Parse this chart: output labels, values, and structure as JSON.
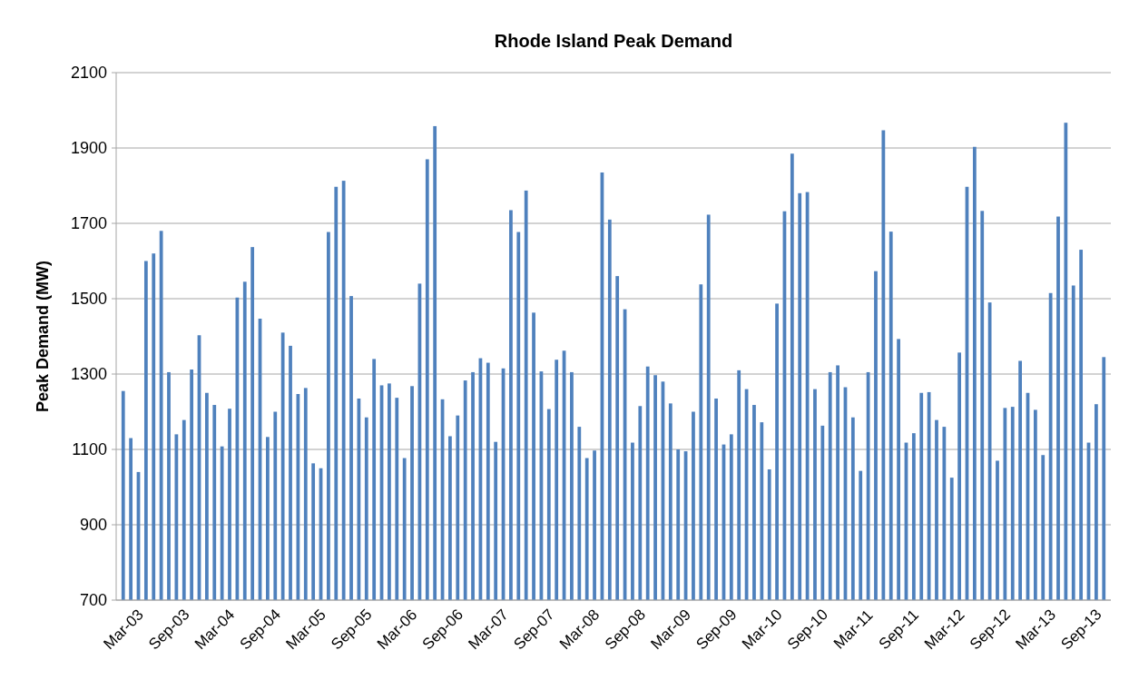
{
  "chart_data": {
    "type": "bar",
    "title": "Rhode Island Peak Demand",
    "ylabel": "Peak Demand (MW)",
    "categories": [
      "Mar-03",
      null,
      null,
      null,
      null,
      null,
      "Sep-03",
      null,
      null,
      null,
      null,
      null,
      "Mar-04",
      null,
      null,
      null,
      null,
      null,
      "Sep-04",
      null,
      null,
      null,
      null,
      null,
      "Mar-05",
      null,
      null,
      null,
      null,
      null,
      "Sep-05",
      null,
      null,
      null,
      null,
      null,
      "Mar-06",
      null,
      null,
      null,
      null,
      null,
      "Sep-06",
      null,
      null,
      null,
      null,
      null,
      "Mar-07",
      null,
      null,
      null,
      null,
      null,
      "Sep-07",
      null,
      null,
      null,
      null,
      null,
      "Mar-08",
      null,
      null,
      null,
      null,
      null,
      "Sep-08",
      null,
      null,
      null,
      null,
      null,
      "Mar-09",
      null,
      null,
      null,
      null,
      null,
      "Sep-09",
      null,
      null,
      null,
      null,
      null,
      "Mar-10",
      null,
      null,
      null,
      null,
      null,
      "Sep-10",
      null,
      null,
      null,
      null,
      null,
      "Mar-11",
      null,
      null,
      null,
      null,
      null,
      "Sep-11",
      null,
      null,
      null,
      null,
      null,
      "Mar-12",
      null,
      null,
      null,
      null,
      null,
      "Sep-12",
      null,
      null,
      null,
      null,
      null,
      "Mar-13",
      null,
      null,
      null,
      null,
      null,
      "Sep-13",
      null,
      null,
      null
    ],
    "values": [
      1255,
      1130,
      1040,
      1600,
      1620,
      1680,
      1305,
      1140,
      1178,
      1312,
      1403,
      1250,
      1218,
      1108,
      1208,
      1503,
      1545,
      1637,
      1447,
      1133,
      1200,
      1410,
      1375,
      1247,
      1263,
      1063,
      1050,
      1677,
      1797,
      1813,
      1507,
      1235,
      1185,
      1340,
      1270,
      1275,
      1237,
      1077,
      1268,
      1540,
      1870,
      1958,
      1233,
      1135,
      1190,
      1283,
      1305,
      1342,
      1330,
      1120,
      1315,
      1735,
      1677,
      1787,
      1463,
      1307,
      1207,
      1338,
      1362,
      1305,
      1160,
      1077,
      1097,
      1835,
      1710,
      1560,
      1472,
      1118,
      1215,
      1320,
      1297,
      1280,
      1222,
      1100,
      1095,
      1200,
      1538,
      1723,
      1235,
      1113,
      1140,
      1310,
      1260,
      1218,
      1172,
      1047,
      1487,
      1732,
      1885,
      1780,
      1783,
      1260,
      1163,
      1305,
      1323,
      1265,
      1185,
      1043,
      1305,
      1573,
      1947,
      1678,
      1393,
      1118,
      1143,
      1250,
      1252,
      1178,
      1160,
      1025,
      1357,
      1797,
      1903,
      1733,
      1490,
      1070,
      1210,
      1213,
      1335,
      1250,
      1205,
      1085,
      1515,
      1718,
      1967,
      1535,
      1630,
      1118,
      1220,
      1345
    ],
    "color": "#4f81bd",
    "ylim": [
      700,
      2100
    ],
    "yticks": [
      700,
      900,
      1100,
      1300,
      1500,
      1700,
      1900,
      2100
    ],
    "grid": "y"
  }
}
